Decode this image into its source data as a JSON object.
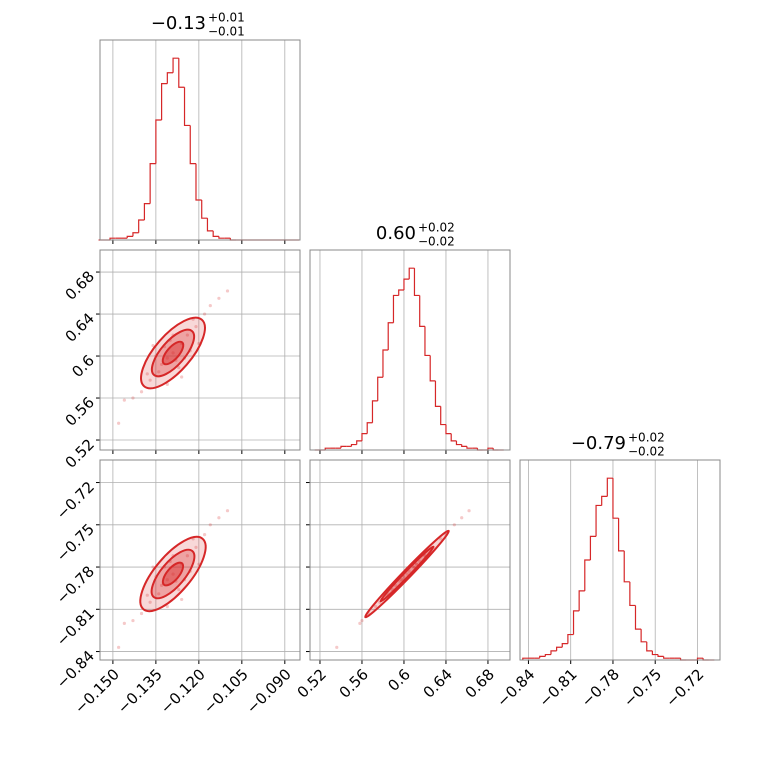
{
  "chart_data": {
    "type": "corner",
    "color": "#d62728",
    "grid": true,
    "params": [
      {
        "title": {
          "value": "−0.13",
          "plus": "+0.01",
          "minus": "−0.01"
        },
        "lim": [
          -0.1545,
          -0.0847
        ],
        "ticks": [
          {
            "value": -0.15,
            "label": "−0.150"
          },
          {
            "value": -0.135,
            "label": "−0.135"
          },
          {
            "value": -0.12,
            "label": "−0.120"
          },
          {
            "value": -0.105,
            "label": "−0.105"
          },
          {
            "value": -0.09,
            "label": "−0.090"
          }
        ],
        "bins": [
          -0.155,
          -0.153,
          -0.151,
          -0.149,
          -0.147,
          -0.145,
          -0.143,
          -0.141,
          -0.139,
          -0.137,
          -0.135,
          -0.133,
          -0.131,
          -0.129,
          -0.127,
          -0.125,
          -0.123,
          -0.121,
          -0.119,
          -0.117,
          -0.115,
          -0.113,
          -0.111,
          -0.109,
          -0.107,
          -0.105,
          -0.103,
          -0.101,
          -0.099,
          -0.097,
          -0.095,
          -0.093,
          -0.091,
          -0.089,
          -0.087,
          -0.085
        ],
        "counts": [
          0,
          0,
          1,
          1,
          1,
          2,
          4,
          11,
          20,
          42,
          66,
          86,
          92,
          100,
          84,
          63,
          42,
          22,
          12,
          5,
          2,
          1,
          1,
          0,
          0,
          0,
          0,
          0,
          0,
          0,
          0,
          0,
          0,
          0,
          0
        ],
        "count_lim": [
          0,
          110
        ]
      },
      {
        "title": {
          "value": "0.60",
          "plus": "+0.02",
          "minus": "−0.02"
        },
        "lim": [
          0.5105,
          0.701
        ],
        "ticks": [
          0.52,
          0.56,
          0.6,
          0.64,
          0.68
        ],
        "bins": [
          0.515,
          0.52,
          0.525,
          0.53,
          0.535,
          0.54,
          0.545,
          0.55,
          0.555,
          0.56,
          0.565,
          0.57,
          0.575,
          0.58,
          0.585,
          0.59,
          0.595,
          0.6,
          0.605,
          0.61,
          0.615,
          0.62,
          0.625,
          0.63,
          0.635,
          0.64,
          0.645,
          0.65,
          0.655,
          0.66,
          0.665,
          0.67,
          0.675,
          0.68,
          0.685,
          0.69,
          0.695
        ],
        "counts": [
          0,
          0,
          1,
          1,
          1,
          2,
          2,
          3,
          5,
          9,
          15,
          27,
          40,
          55,
          70,
          85,
          88,
          94,
          100,
          85,
          68,
          52,
          38,
          24,
          14,
          9,
          5,
          3,
          2,
          1,
          1,
          0,
          0,
          1,
          0,
          0
        ],
        "count_lim": [
          0,
          110
        ]
      },
      {
        "title": {
          "value": "−0.79",
          "plus": "+0.02",
          "minus": "−0.02"
        },
        "lim": [
          -0.846,
          -0.704
        ],
        "ticks": [
          {
            "value": -0.84,
            "label": "−0.84"
          },
          {
            "value": -0.81,
            "label": "−0.81"
          },
          {
            "value": -0.78,
            "label": "−0.78"
          },
          {
            "value": -0.75,
            "label": "−0.75"
          },
          {
            "value": -0.72,
            "label": "−0.72"
          }
        ],
        "bins": [
          -0.844,
          -0.84,
          -0.836,
          -0.832,
          -0.828,
          -0.824,
          -0.82,
          -0.816,
          -0.812,
          -0.808,
          -0.804,
          -0.8,
          -0.796,
          -0.792,
          -0.788,
          -0.784,
          -0.78,
          -0.776,
          -0.772,
          -0.768,
          -0.764,
          -0.76,
          -0.756,
          -0.752,
          -0.748,
          -0.744,
          -0.74,
          -0.736,
          -0.732,
          -0.728,
          -0.724,
          -0.72,
          -0.716,
          -0.712,
          -0.708
        ],
        "counts": [
          1,
          1,
          1,
          2,
          3,
          5,
          7,
          9,
          14,
          27,
          38,
          55,
          68,
          85,
          90,
          100,
          78,
          60,
          43,
          30,
          17,
          10,
          5,
          3,
          2,
          1,
          1,
          1,
          0,
          0,
          0,
          1,
          0,
          0
        ],
        "count_lim": [
          0,
          110
        ]
      }
    ],
    "samples": [
      [
        -0.129,
        -0.131,
        -0.126,
        -0.134,
        -0.124,
        -0.137,
        -0.121,
        -0.128,
        -0.132,
        -0.127,
        -0.14,
        -0.118,
        -0.135,
        -0.123,
        -0.13,
        -0.143,
        -0.116,
        -0.133,
        -0.125,
        -0.138,
        -0.12,
        -0.146,
        -0.113,
        -0.129,
        -0.126,
        -0.136,
        -0.122,
        -0.148,
        -0.11,
        -0.131
      ],
      [
        0.603,
        0.598,
        0.612,
        0.585,
        0.62,
        0.577,
        0.628,
        0.596,
        0.609,
        0.589,
        0.566,
        0.64,
        0.6,
        0.605,
        0.615,
        0.56,
        0.648,
        0.592,
        0.598,
        0.583,
        0.612,
        0.558,
        0.655,
        0.62,
        0.58,
        0.61,
        0.635,
        0.536,
        0.662,
        0.573
      ],
      [
        -0.785,
        -0.789,
        -0.778,
        -0.799,
        -0.772,
        -0.805,
        -0.766,
        -0.79,
        -0.78,
        -0.796,
        -0.813,
        -0.757,
        -0.787,
        -0.783,
        -0.776,
        -0.818,
        -0.75,
        -0.793,
        -0.789,
        -0.8,
        -0.778,
        -0.82,
        -0.745,
        -0.772,
        -0.803,
        -0.78,
        -0.76,
        -0.837,
        -0.74,
        -0.808
      ]
    ]
  }
}
